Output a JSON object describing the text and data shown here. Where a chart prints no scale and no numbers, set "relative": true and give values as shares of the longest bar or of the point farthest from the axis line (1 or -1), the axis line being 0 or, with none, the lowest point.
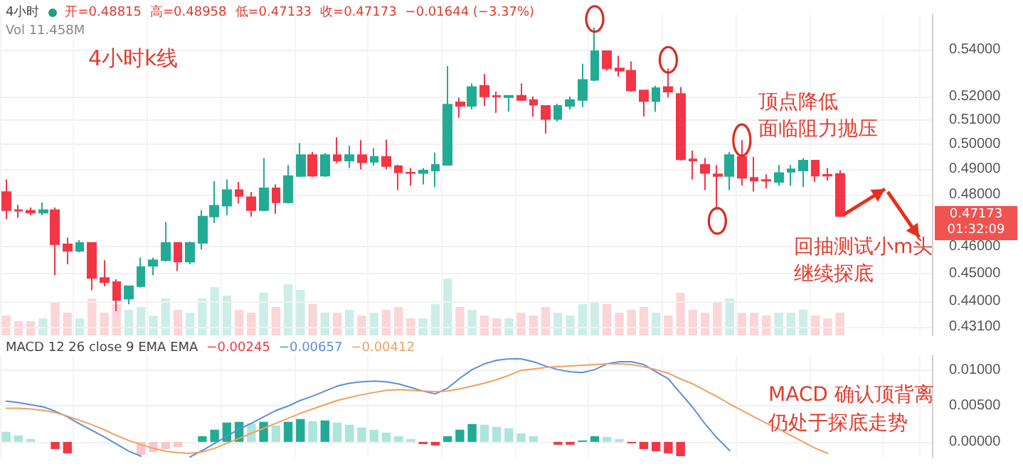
{
  "chart_data": [
    {
      "type": "candlestick",
      "log": true,
      "grid": true,
      "annotations": [
        "4小时",
        "开=0.48815",
        "高=0.48958",
        "低=0.47133",
        "收=0.47173",
        "−0.01644 (−3.37%)",
        "Vol 11.458M",
        "4小时k线",
        "顶点降低",
        "面临阻力抛压",
        "回抽测试小m头",
        "继续探底",
        "0.47173",
        "01:32:09"
      ],
      "categories": [
        null,
        null,
        null,
        null,
        null,
        null,
        null,
        null,
        null,
        null,
        null,
        null,
        null,
        null,
        null,
        null,
        null,
        null,
        null,
        null,
        null,
        null,
        null,
        null,
        null,
        null,
        null,
        null,
        null,
        null,
        null,
        null,
        null,
        null,
        null,
        null,
        null,
        null,
        null,
        null,
        null,
        null,
        null,
        null,
        null,
        null,
        null,
        null,
        null,
        null,
        null,
        null,
        null,
        null,
        null,
        null,
        null,
        null,
        null,
        null,
        null,
        null,
        null,
        null,
        null,
        null,
        null,
        null,
        null,
        null,
        null,
        null,
        null,
        null,
        null,
        null
      ],
      "ohlc": [
        [
          0.481,
          0.486,
          0.4705,
          0.474
        ],
        [
          0.474,
          0.476,
          0.471,
          0.4738
        ],
        [
          0.4738,
          0.475,
          0.472,
          0.473
        ],
        [
          0.473,
          0.477,
          0.472,
          0.474
        ],
        [
          0.474,
          0.475,
          0.4495,
          0.461
        ],
        [
          0.461,
          0.4635,
          0.4535,
          0.4585
        ],
        [
          0.4585,
          0.4625,
          0.458,
          0.4615
        ],
        [
          0.4615,
          0.4615,
          0.444,
          0.4485
        ],
        [
          0.4485,
          0.455,
          0.4455,
          0.447
        ],
        [
          0.447,
          0.448,
          0.4365,
          0.4405
        ],
        [
          0.441,
          0.4455,
          0.439,
          0.4455
        ],
        [
          0.4455,
          0.456,
          0.445,
          0.4525
        ],
        [
          0.453,
          0.456,
          0.4495,
          0.455
        ],
        [
          0.455,
          0.4695,
          0.4545,
          0.4615
        ],
        [
          0.4615,
          0.4615,
          0.451,
          0.4545
        ],
        [
          0.4545,
          0.462,
          0.4535,
          0.4615
        ],
        [
          0.4615,
          0.474,
          0.459,
          0.4715
        ],
        [
          0.4715,
          0.4853,
          0.469,
          0.4757
        ],
        [
          0.4757,
          0.486,
          0.472,
          0.4818
        ],
        [
          0.4818,
          0.485,
          0.4765,
          0.4795
        ],
        [
          0.479,
          0.481,
          0.4715,
          0.474
        ],
        [
          0.474,
          0.4945,
          0.4735,
          0.4825
        ],
        [
          0.4825,
          0.484,
          0.4725,
          0.477
        ],
        [
          0.477,
          0.4917,
          0.4765,
          0.4873
        ],
        [
          0.4873,
          0.5006,
          0.487,
          0.4957
        ],
        [
          0.4957,
          0.497,
          0.487,
          0.4875
        ],
        [
          0.4875,
          0.4965,
          0.487,
          0.4957
        ],
        [
          0.4957,
          0.503,
          0.4925,
          0.4935
        ],
        [
          0.4935,
          0.4995,
          0.4905,
          0.4957
        ],
        [
          0.4957,
          0.5018,
          0.49,
          0.4928
        ],
        [
          0.493,
          0.4985,
          0.4915,
          0.495
        ],
        [
          0.495,
          0.502,
          0.49,
          0.4913
        ],
        [
          0.4913,
          0.4918,
          0.4818,
          0.4888
        ],
        [
          0.4887,
          0.4905,
          0.4835,
          0.4885
        ],
        [
          0.4885,
          0.4905,
          0.484,
          0.4895
        ],
        [
          0.4895,
          0.4967,
          0.483,
          0.4918
        ],
        [
          0.4918,
          0.533,
          0.4915,
          0.5165
        ],
        [
          0.5175,
          0.5195,
          0.511,
          0.516
        ],
        [
          0.516,
          0.5255,
          0.5145,
          0.524
        ],
        [
          0.5245,
          0.5295,
          0.516,
          0.52
        ],
        [
          0.5202,
          0.522,
          0.513,
          0.52
        ],
        [
          0.5197,
          0.5205,
          0.5135,
          0.5203
        ],
        [
          0.5203,
          0.5255,
          0.518,
          0.5185
        ],
        [
          0.5185,
          0.52,
          0.5115,
          0.5165
        ],
        [
          0.516,
          0.516,
          0.5045,
          0.5105
        ],
        [
          0.5105,
          0.517,
          0.5095,
          0.516
        ],
        [
          0.516,
          0.52,
          0.5145,
          0.5185
        ],
        [
          0.5185,
          0.534,
          0.5155,
          0.527
        ],
        [
          0.527,
          0.55,
          0.5265,
          0.5395
        ],
        [
          0.5395,
          0.5395,
          0.531,
          0.532
        ],
        [
          0.532,
          0.5375,
          0.5285,
          0.531
        ],
        [
          0.531,
          0.535,
          0.522,
          0.5225
        ],
        [
          0.5225,
          0.5225,
          0.5115,
          0.518
        ],
        [
          0.518,
          0.5245,
          0.5135,
          0.5235
        ],
        [
          0.524,
          0.532,
          0.5195,
          0.522
        ],
        [
          0.521,
          0.524,
          0.4935,
          0.494
        ],
        [
          0.494,
          0.4975,
          0.486,
          0.4935
        ],
        [
          0.4918,
          0.4945,
          0.4818,
          0.4885
        ],
        [
          0.488,
          0.4917,
          0.4742,
          0.4873
        ],
        [
          0.4873,
          0.497,
          0.4818,
          0.4957
        ],
        [
          0.495,
          0.5018,
          0.4835,
          0.4866
        ],
        [
          0.4866,
          0.495,
          0.4812,
          0.4855
        ],
        [
          0.4858,
          0.488,
          0.4824,
          0.4855
        ],
        [
          0.485,
          0.4917,
          0.4835,
          0.4885
        ],
        [
          0.489,
          0.4918,
          0.4835,
          0.49
        ],
        [
          0.4895,
          0.4945,
          0.483,
          0.4935
        ],
        [
          0.4935,
          0.4935,
          0.485,
          0.4875
        ],
        [
          0.4878,
          0.4905,
          0.4855,
          0.4875
        ],
        [
          0.48815,
          0.48958,
          0.47133,
          0.47173
        ],
        null,
        null,
        null,
        null,
        null,
        null,
        null
      ],
      "colors": [
        "#f23645",
        "#f23645",
        "#f23645",
        "#22ab94",
        "#f23645",
        "#f23645",
        "#22ab94",
        "#f23645",
        "#f23645",
        "#f23645",
        "#22ab94",
        "#22ab94",
        "#22ab94",
        "#22ab94",
        "#f23645",
        "#22ab94",
        "#22ab94",
        "#22ab94",
        "#22ab94",
        "#f23645",
        "#f23645",
        "#22ab94",
        "#f23645",
        "#22ab94",
        "#22ab94",
        "#f23645",
        "#22ab94",
        "#f23645",
        "#22ab94",
        "#f23645",
        "#22ab94",
        "#f23645",
        "#f23645",
        "#f23645",
        "#22ab94",
        "#22ab94",
        "#22ab94",
        "#f23645",
        "#22ab94",
        "#f23645",
        "#f23645",
        "#22ab94",
        "#f23645",
        "#f23645",
        "#f23645",
        "#22ab94",
        "#22ab94",
        "#22ab94",
        "#22ab94",
        "#f23645",
        "#f23645",
        "#f23645",
        "#f23645",
        "#22ab94",
        "#f23645",
        "#f23645",
        "#f23645",
        "#f23645",
        "#f23645",
        "#22ab94",
        "#f23645",
        "#f23645",
        "#f23645",
        "#22ab94",
        "#22ab94",
        "#22ab94",
        "#f23645",
        "#f23645",
        "#f23645",
        null,
        null,
        null,
        null,
        null,
        null,
        null
      ],
      "ylim": [
        0.428,
        0.556
      ],
      "yticks": [
        {
          "value": 0.431,
          "label": "0.43100"
        },
        {
          "value": 0.44,
          "label": "0.44000"
        },
        {
          "value": 0.45,
          "label": "0.45000"
        },
        {
          "value": 0.46,
          "label": "0.46000"
        },
        {
          "value": 0.48,
          "label": "0.48000"
        },
        {
          "value": 0.49,
          "label": "0.49000"
        },
        {
          "value": 0.5,
          "label": "0.50000"
        },
        {
          "value": 0.51,
          "label": "0.51000"
        },
        {
          "value": 0.52,
          "label": "0.52000"
        },
        {
          "value": 0.54,
          "label": "0.54000"
        }
      ]
    },
    {
      "type": "bar",
      "relative": true,
      "categories": [
        null,
        null,
        null,
        null,
        null,
        null,
        null,
        null,
        null,
        null,
        null,
        null,
        null,
        null,
        null,
        null,
        null,
        null,
        null,
        null,
        null,
        null,
        null,
        null,
        null,
        null,
        null,
        null,
        null,
        null,
        null,
        null,
        null,
        null,
        null,
        null,
        null,
        null,
        null,
        null,
        null,
        null,
        null,
        null,
        null,
        null,
        null,
        null,
        null,
        null,
        null,
        null,
        null,
        null,
        null,
        null,
        null,
        null,
        null,
        null,
        null,
        null,
        null,
        null,
        null,
        null,
        null,
        null,
        null,
        null,
        null,
        null,
        null,
        null,
        null,
        null
      ],
      "values": [
        0.35,
        0.25,
        0.25,
        0.3,
        0.6,
        0.4,
        0.3,
        0.65,
        0.4,
        0.55,
        0.45,
        0.5,
        0.35,
        0.65,
        0.45,
        0.4,
        0.65,
        0.85,
        0.7,
        0.45,
        0.4,
        0.75,
        0.5,
        0.9,
        0.8,
        0.55,
        0.4,
        0.4,
        0.45,
        0.35,
        0.4,
        0.45,
        0.5,
        0.3,
        0.3,
        0.55,
        1,
        0.5,
        0.45,
        0.35,
        0.3,
        0.3,
        0.4,
        0.35,
        0.5,
        0.4,
        0.35,
        0.55,
        0.6,
        0.55,
        0.4,
        0.45,
        0.5,
        0.4,
        0.35,
        0.75,
        0.45,
        0.4,
        0.6,
        0.65,
        0.4,
        0.4,
        0.35,
        0.4,
        0.4,
        0.45,
        0.35,
        0.3,
        0.4,
        null,
        null,
        null,
        null,
        null,
        null,
        null
      ],
      "colors": [
        "#fbd5d8",
        "#fbd5d8",
        "#fbd5d8",
        "#cdeee7",
        "#fbd5d8",
        "#fbd5d8",
        "#cdeee7",
        "#fbd5d8",
        "#fbd5d8",
        "#fbd5d8",
        "#cdeee7",
        "#cdeee7",
        "#cdeee7",
        "#cdeee7",
        "#fbd5d8",
        "#cdeee7",
        "#cdeee7",
        "#cdeee7",
        "#cdeee7",
        "#fbd5d8",
        "#fbd5d8",
        "#cdeee7",
        "#fbd5d8",
        "#cdeee7",
        "#cdeee7",
        "#fbd5d8",
        "#cdeee7",
        "#fbd5d8",
        "#cdeee7",
        "#fbd5d8",
        "#cdeee7",
        "#fbd5d8",
        "#fbd5d8",
        "#fbd5d8",
        "#cdeee7",
        "#cdeee7",
        "#cdeee7",
        "#fbd5d8",
        "#cdeee7",
        "#fbd5d8",
        "#fbd5d8",
        "#cdeee7",
        "#fbd5d8",
        "#fbd5d8",
        "#fbd5d8",
        "#cdeee7",
        "#cdeee7",
        "#cdeee7",
        "#cdeee7",
        "#fbd5d8",
        "#fbd5d8",
        "#fbd5d8",
        "#fbd5d8",
        "#cdeee7",
        "#fbd5d8",
        "#fbd5d8",
        "#fbd5d8",
        "#fbd5d8",
        "#fbd5d8",
        "#cdeee7",
        "#fbd5d8",
        "#fbd5d8",
        "#fbd5d8",
        "#cdeee7",
        "#cdeee7",
        "#cdeee7",
        "#fbd5d8",
        "#fbd5d8",
        "#fbd5d8",
        null,
        null,
        null,
        null,
        null,
        null,
        null
      ]
    },
    {
      "type": "bar",
      "grid": true,
      "marker": "none",
      "annotations": [
        "MACD 12 26 close 9 EMA EMA",
        "−0.00245",
        "−0.00657",
        "−0.00412",
        "MACD 确认顶背离",
        "仍处于探底走势"
      ],
      "categories": [
        null,
        null,
        null,
        null,
        null,
        null,
        null,
        null,
        null,
        null,
        null,
        null,
        null,
        null,
        null,
        null,
        null,
        null,
        null,
        null,
        null,
        null,
        null,
        null,
        null,
        null,
        null,
        null,
        null,
        null,
        null,
        null,
        null,
        null,
        null,
        null,
        null,
        null,
        null,
        null,
        null,
        null,
        null,
        null,
        null,
        null,
        null,
        null,
        null,
        null,
        null,
        null,
        null,
        null,
        null,
        null,
        null,
        null,
        null,
        null,
        null,
        null,
        null,
        null,
        null,
        null,
        null,
        null,
        null,
        null,
        null,
        null,
        null,
        null,
        null,
        null
      ],
      "ylim": [
        -0.0022,
        0.0121
      ],
      "yticks": [
        {
          "value": 0,
          "label": "0.00000"
        },
        {
          "value": 0.005,
          "label": "0.00500"
        },
        {
          "value": 0.01,
          "label": "0.01000"
        }
      ],
      "series": [
        {
          "values": [
            0.0014,
            0.0009,
            0.0004,
            null,
            -0.001,
            -0.0016,
            null,
            null,
            null,
            null,
            null,
            -0.0018,
            -0.0014,
            -0.001,
            -0.0007,
            null,
            0.0008,
            0.0017,
            0.0027,
            0.0028,
            0.0026,
            0.0028,
            0.0023,
            0.0028,
            0.0032,
            0.0029,
            0.003,
            0.0027,
            0.0024,
            0.002,
            0.0017,
            0.0013,
            0.0008,
            0.0004,
            -0.0003,
            -0.0005,
            0.0008,
            0.0017,
            0.0025,
            0.0024,
            0.0021,
            0.0019,
            0.0012,
            0.0008,
            null,
            -0.0004,
            -0.0004,
            0.0002,
            0.0008,
            0.0007,
            0.0004,
            -0.0002,
            -0.001,
            -0.0013,
            -0.0016,
            -0.002,
            null,
            null,
            null,
            null,
            null,
            null,
            null,
            null,
            null,
            null,
            null,
            null,
            null,
            null,
            null,
            null,
            null,
            null,
            null,
            null
          ],
          "colors": [
            "#ace5dc",
            "#ace5dc",
            "#ace5dc",
            "#ace5dc",
            "#f23645",
            "#f23645",
            "#f23645",
            "#f23645",
            "#f23645",
            "#f23645",
            "#f9c6ca",
            "#f9c6ca",
            "#f9c6ca",
            "#f9c6ca",
            "#f9c6ca",
            "#f9c6ca",
            "#22ab94",
            "#22ab94",
            "#22ab94",
            "#22ab94",
            "#ace5dc",
            "#22ab94",
            "#ace5dc",
            "#22ab94",
            "#22ab94",
            "#ace5dc",
            "#22ab94",
            "#ace5dc",
            "#ace5dc",
            "#ace5dc",
            "#ace5dc",
            "#ace5dc",
            "#ace5dc",
            "#ace5dc",
            "#f23645",
            "#f23645",
            "#22ab94",
            "#22ab94",
            "#22ab94",
            "#ace5dc",
            "#ace5dc",
            "#ace5dc",
            "#ace5dc",
            "#ace5dc",
            "#ace5dc",
            "#f23645",
            "#f23645",
            "#22ab94",
            "#22ab94",
            "#ace5dc",
            "#ace5dc",
            "#f23645",
            "#f23645",
            "#f23645",
            "#f23645",
            "#f23645",
            "#f23645",
            "#f23645",
            "#f23645",
            "#f9c6ca",
            "#f9c6ca",
            "#f9c6ca",
            "#f9c6ca",
            "#f9c6ca",
            "#f9c6ca",
            "#f9c6ca",
            "#f9c6ca",
            "#f9c6ca",
            "#f23645",
            null,
            null,
            null,
            null,
            null,
            null,
            null
          ]
        },
        {
          "type": "line",
          "color": "#5b8fd9",
          "values": [
            0.0057,
            0.0055,
            0.0052,
            0.0049,
            0.0043,
            0.0035,
            0.0025,
            0.0016,
            0.0007,
            -0.0003,
            -0.0013,
            -0.002,
            null,
            null,
            null,
            -0.0021,
            -0.0012,
            -0.0002,
            0.0008,
            0.0018,
            0.0026,
            0.0035,
            0.0044,
            0.005,
            0.0058,
            0.0064,
            0.0071,
            0.0078,
            0.0082,
            0.0084,
            0.0085,
            0.0084,
            0.0081,
            0.0076,
            0.0071,
            0.0067,
            0.0075,
            0.0089,
            0.0101,
            0.0109,
            0.0114,
            0.0116,
            0.0116,
            0.0112,
            0.0106,
            0.0101,
            0.0098,
            0.0097,
            0.0101,
            0.0109,
            0.0112,
            0.0112,
            0.0108,
            0.0098,
            0.0088,
            0.0068,
            0.0048,
            0.0025,
            0.0005,
            -0.0012,
            null,
            null,
            null,
            null,
            null,
            null,
            null,
            null,
            null,
            null,
            null,
            null,
            null,
            null,
            null,
            null
          ]
        },
        {
          "type": "line",
          "color": "#f0a060",
          "values": [
            0.0047,
            0.0047,
            0.0046,
            0.0044,
            0.0041,
            0.0036,
            0.003,
            0.0024,
            0.0017,
            0.0009,
            0.0002,
            -0.0004,
            -0.0009,
            -0.0013,
            -0.0015,
            -0.0016,
            -0.0014,
            -0.0009,
            -0.0002,
            0.0005,
            0.0012,
            0.0019,
            0.0026,
            0.0033,
            0.004,
            0.0046,
            0.0052,
            0.0058,
            0.0062,
            0.0066,
            0.0069,
            0.0072,
            0.0073,
            0.0072,
            0.0071,
            0.007,
            0.0071,
            0.0074,
            0.0078,
            0.0082,
            0.0087,
            0.0093,
            0.01,
            0.0102,
            0.0104,
            0.0105,
            0.0106,
            0.0107,
            0.0108,
            0.0109,
            0.0109,
            0.0108,
            0.0105,
            0.0101,
            0.0096,
            0.0088,
            0.0081,
            0.0072,
            0.0063,
            0.0053,
            0.0044,
            0.0035,
            0.0026,
            0.0018,
            0.0009,
            0,
            -0.0009,
            -0.0016,
            null,
            null,
            null,
            null,
            null,
            null,
            null,
            null
          ]
        }
      ]
    }
  ]
}
